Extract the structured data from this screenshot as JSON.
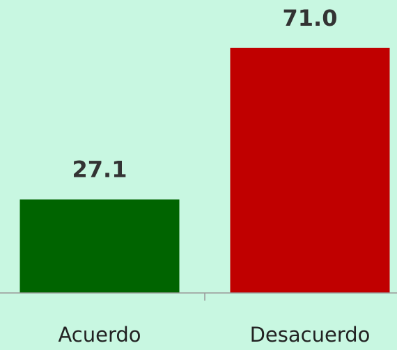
{
  "chart_data": {
    "type": "bar",
    "categories": [
      "Acuerdo",
      "Desacuerdo"
    ],
    "values": [
      27.1,
      71.0
    ],
    "value_labels": [
      "27.1",
      "71.0"
    ],
    "colors": [
      "#006400",
      "#c00000"
    ]
  }
}
